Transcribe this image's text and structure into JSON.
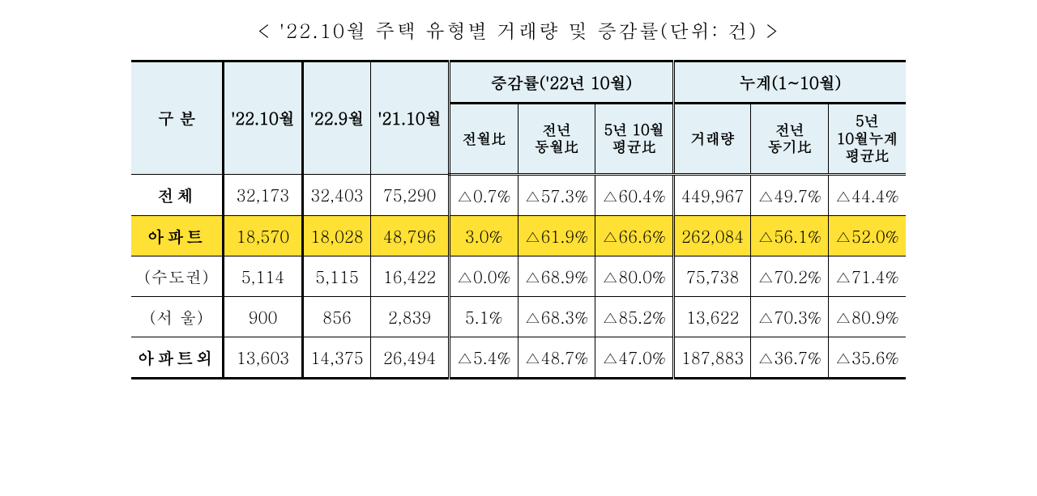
{
  "title": "< '22.10월 주택 유형별 거래량 및 증감률(단위: 건) >",
  "header": {
    "col1": "구 분",
    "col2": "'22.10월",
    "col3": "'22.9월",
    "col4": "'21.10월",
    "grp1": "증감률('22년 10월)",
    "grp1_sub": {
      "a": "전월比",
      "b": "전년<br>동월比",
      "c": "5년 10월<br>평균比"
    },
    "grp2": "누계(1~10월)",
    "grp2_sub": {
      "a": "거래량",
      "b": "전년<br>동기比",
      "c": "5년<br>10월누계<br>평균比"
    }
  },
  "rows": [
    {
      "label": "전체",
      "class": "row-label",
      "hl": false,
      "c2": "32,173",
      "c3": "32,403",
      "c4": "75,290",
      "g1a": "△0.7%",
      "g1b": "△57.3%",
      "g1c": "△60.4%",
      "g2a": "449,967",
      "g2b": "△49.7%",
      "g2c": "△44.4%"
    },
    {
      "label": "아파트",
      "class": "row-label",
      "hl": true,
      "c2": "18,570",
      "c3": "18,028",
      "c4": "48,796",
      "g1a": "3.0%",
      "g1b": "△61.9%",
      "g1c": "△66.6%",
      "g2a": "262,084",
      "g2b": "△56.1%",
      "g2c": "△52.0%"
    },
    {
      "label": "(수도권)",
      "class": "paren-label",
      "hl": false,
      "c2": "5,114",
      "c3": "5,115",
      "c4": "16,422",
      "g1a": "△0.0%",
      "g1b": "△68.9%",
      "g1c": "△80.0%",
      "g2a": "75,738",
      "g2b": "△70.2%",
      "g2c": "△71.4%"
    },
    {
      "label": "(서 울)",
      "class": "paren-label",
      "hl": false,
      "c2": "900",
      "c3": "856",
      "c4": "2,839",
      "g1a": "5.1%",
      "g1b": "△68.3%",
      "g1c": "△85.2%",
      "g2a": "13,622",
      "g2b": "△70.3%",
      "g2c": "△80.9%"
    },
    {
      "label": "아파트외",
      "class": "row-label",
      "hl": false,
      "c2": "13,603",
      "c3": "14,375",
      "c4": "26,494",
      "g1a": "△5.4%",
      "g1b": "△48.7%",
      "g1c": "△47.0%",
      "g2a": "187,883",
      "g2b": "△36.7%",
      "g2c": "△35.6%"
    }
  ],
  "style": {
    "header_bg": "#e3f0f5",
    "highlight_bg": "#ffe034",
    "text_color": "#000000",
    "title_fontsize": 24,
    "body_fontsize": 20
  }
}
